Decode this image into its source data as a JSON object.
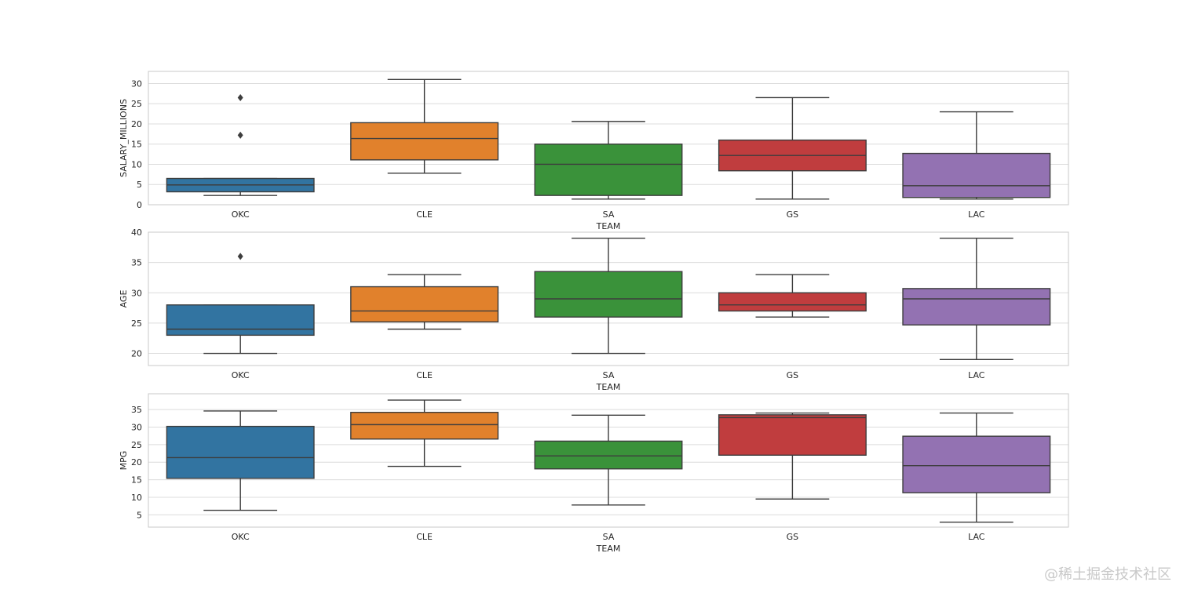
{
  "watermark": "@稀土掘金技术社区",
  "colors": {
    "boxes": [
      "#3274a1",
      "#e1812c",
      "#3a923a",
      "#c03d3e",
      "#9372b2"
    ],
    "grid": "#dcdcdc",
    "frame": "#c8c8c8",
    "line": "#3d3d3d"
  },
  "chart_data": [
    {
      "type": "box",
      "xlabel": "TEAM",
      "ylabel": "SALARY_MILLIONS",
      "ylim": [
        0,
        33
      ],
      "yticks": [
        0,
        5,
        10,
        15,
        20,
        25,
        30
      ],
      "grid": true,
      "categories": [
        "OKC",
        "CLE",
        "SA",
        "GS",
        "LAC"
      ],
      "boxes": [
        {
          "whisker_low": 2.3,
          "q1": 3.2,
          "median": 4.9,
          "q3": 6.5,
          "whisker_high": 6.5,
          "outliers": [
            17.2,
            26.5
          ]
        },
        {
          "whisker_low": 7.8,
          "q1": 11.1,
          "median": 16.4,
          "q3": 20.3,
          "whisker_high": 31.0,
          "outliers": []
        },
        {
          "whisker_low": 1.4,
          "q1": 2.3,
          "median": 10.0,
          "q3": 15.0,
          "whisker_high": 20.6,
          "outliers": []
        },
        {
          "whisker_low": 1.4,
          "q1": 8.4,
          "median": 12.2,
          "q3": 16.0,
          "whisker_high": 26.5,
          "outliers": []
        },
        {
          "whisker_low": 1.4,
          "q1": 1.8,
          "median": 4.7,
          "q3": 12.7,
          "whisker_high": 23.0,
          "outliers": []
        }
      ]
    },
    {
      "type": "box",
      "xlabel": "TEAM",
      "ylabel": "AGE",
      "ylim": [
        18,
        40
      ],
      "yticks": [
        20,
        25,
        30,
        35,
        40
      ],
      "grid": true,
      "categories": [
        "OKC",
        "CLE",
        "SA",
        "GS",
        "LAC"
      ],
      "boxes": [
        {
          "whisker_low": 20,
          "q1": 23,
          "median": 24,
          "q3": 28,
          "whisker_high": 28,
          "outliers": [
            36
          ]
        },
        {
          "whisker_low": 24,
          "q1": 25.2,
          "median": 27,
          "q3": 31,
          "whisker_high": 33,
          "outliers": []
        },
        {
          "whisker_low": 20,
          "q1": 26,
          "median": 29,
          "q3": 33.5,
          "whisker_high": 39,
          "outliers": []
        },
        {
          "whisker_low": 26,
          "q1": 27,
          "median": 28,
          "q3": 30,
          "whisker_high": 33,
          "outliers": []
        },
        {
          "whisker_low": 19,
          "q1": 24.7,
          "median": 29,
          "q3": 30.7,
          "whisker_high": 39,
          "outliers": []
        }
      ]
    },
    {
      "type": "box",
      "xlabel": "TEAM",
      "ylabel": "MPG",
      "ylim": [
        1.5,
        39.5
      ],
      "yticks": [
        5,
        10,
        15,
        20,
        25,
        30,
        35
      ],
      "grid": true,
      "categories": [
        "OKC",
        "CLE",
        "SA",
        "GS",
        "LAC"
      ],
      "boxes": [
        {
          "whisker_low": 6.3,
          "q1": 15.4,
          "median": 21.3,
          "q3": 30.2,
          "whisker_high": 34.6,
          "outliers": []
        },
        {
          "whisker_low": 18.8,
          "q1": 26.6,
          "median": 30.7,
          "q3": 34.2,
          "whisker_high": 37.7,
          "outliers": []
        },
        {
          "whisker_low": 7.8,
          "q1": 18.1,
          "median": 21.8,
          "q3": 26.0,
          "whisker_high": 33.4,
          "outliers": []
        },
        {
          "whisker_low": 9.5,
          "q1": 22.0,
          "median": 32.7,
          "q3": 33.5,
          "whisker_high": 34.0,
          "outliers": []
        },
        {
          "whisker_low": 2.9,
          "q1": 11.3,
          "median": 19.0,
          "q3": 27.4,
          "whisker_high": 34.0,
          "outliers": []
        }
      ]
    }
  ]
}
